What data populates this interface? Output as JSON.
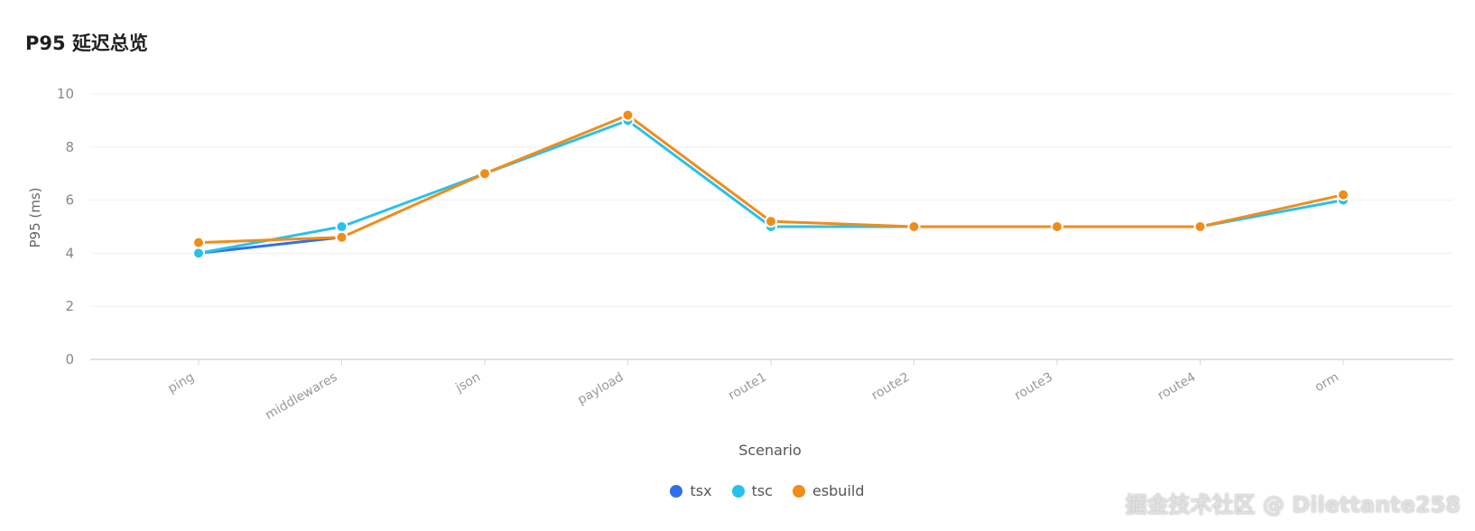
{
  "page": {
    "title": "P95 延迟总览",
    "watermark": "掘金技术社区 @ Dilettante258"
  },
  "chart_data": {
    "type": "line",
    "title": "P95 延迟总览",
    "xlabel": "Scenario",
    "ylabel": "P95 (ms)",
    "ylim": [
      0,
      10
    ],
    "yticks": [
      0,
      2,
      4,
      6,
      8,
      10
    ],
    "categories": [
      "ping",
      "middlewares",
      "json",
      "payload",
      "route1",
      "route2",
      "route3",
      "route4",
      "orm"
    ],
    "grid": true,
    "legend_position": "bottom",
    "series": [
      {
        "name": "tsx",
        "color": "#2f6fed",
        "values": [
          4.0,
          4.6,
          null,
          null,
          null,
          null,
          null,
          null,
          null
        ]
      },
      {
        "name": "tsc",
        "color": "#27c1ee",
        "values": [
          4.0,
          5.0,
          7.0,
          9.0,
          5.0,
          5.0,
          5.0,
          5.0,
          6.0
        ]
      },
      {
        "name": "esbuild",
        "color": "#f28c18",
        "values": [
          4.4,
          4.6,
          7.0,
          9.2,
          5.2,
          5.0,
          5.0,
          5.0,
          6.2
        ]
      }
    ]
  }
}
